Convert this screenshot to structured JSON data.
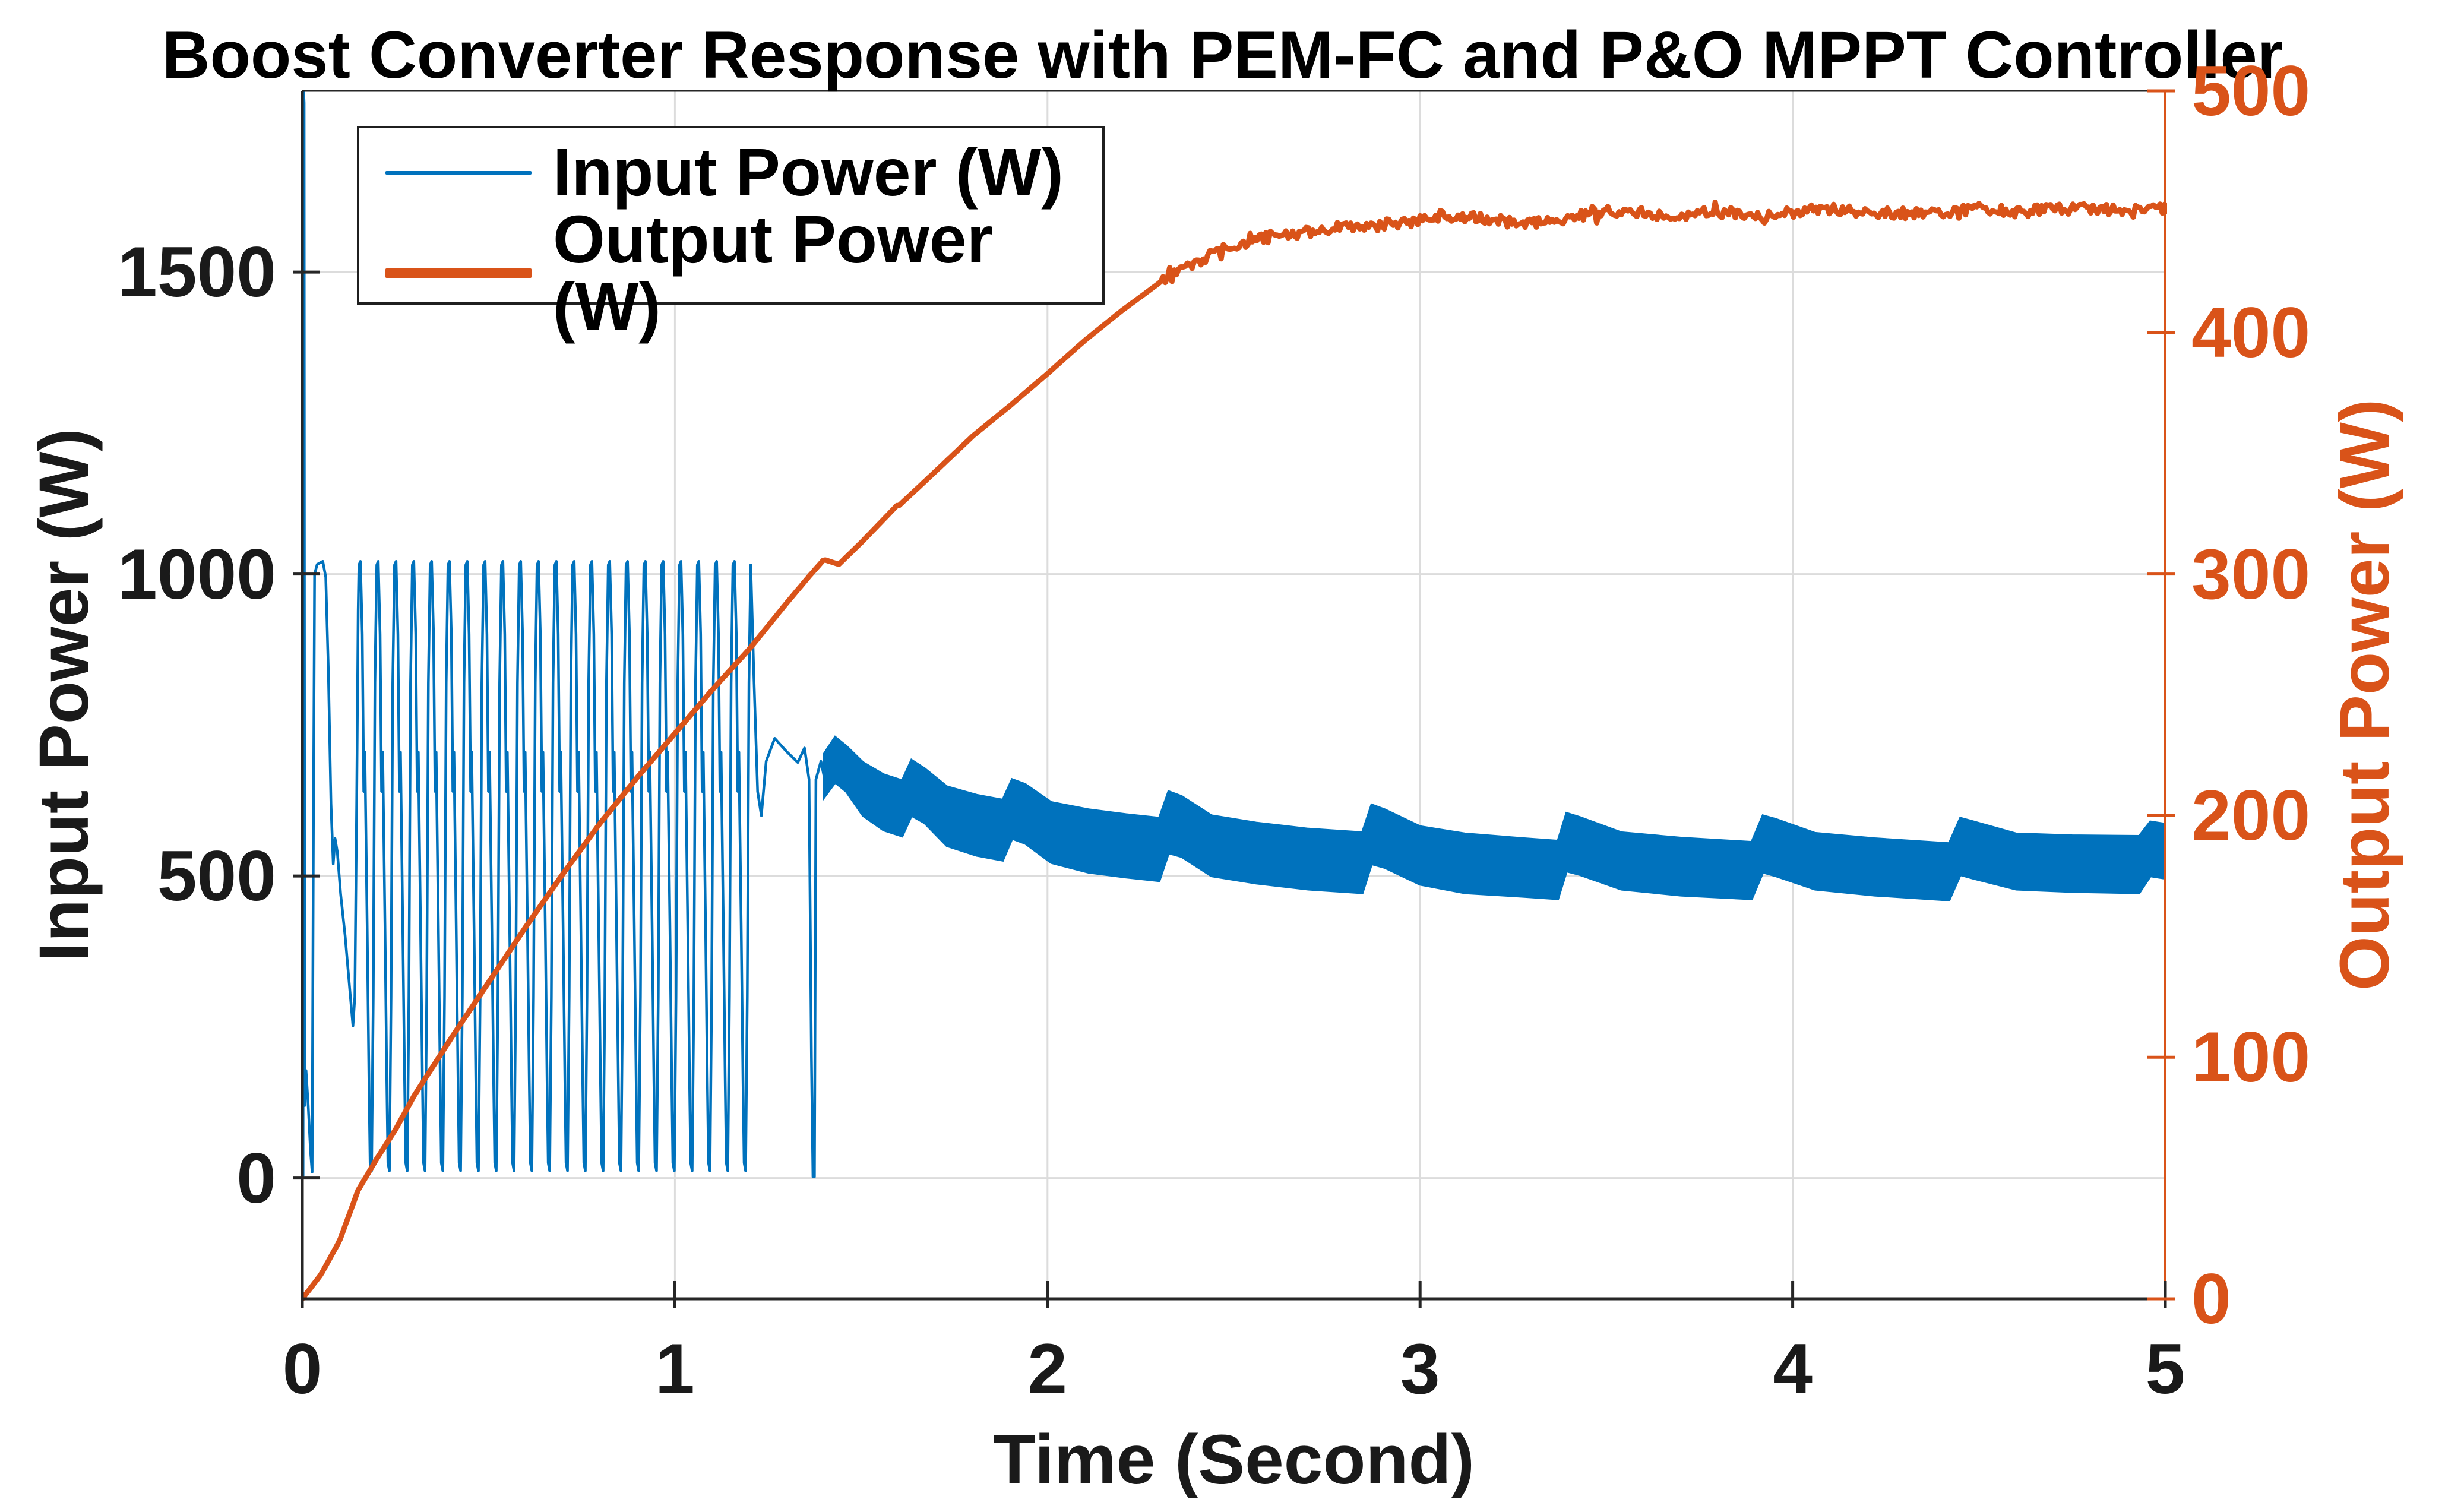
{
  "title": "Boost Converter Response with PEM-FC and P&O MPPT Controller",
  "axes": {
    "x": {
      "label": "Time (Second)",
      "min": 0,
      "max": 5,
      "ticks": [
        0,
        1,
        2,
        3,
        4,
        5
      ],
      "color": "#1a1a1a"
    },
    "y_left": {
      "label": "Input Power (W)",
      "min": -200,
      "max": 1800,
      "ticks": [
        0,
        500,
        1000,
        1500
      ],
      "color": "#1a1a1a"
    },
    "y_right": {
      "label": "Output Power (W)",
      "min": 0,
      "max": 500,
      "ticks": [
        0,
        100,
        200,
        300,
        400,
        500
      ],
      "color": "#D95319"
    }
  },
  "legend": {
    "items": [
      {
        "label": "Input Power (W)",
        "color": "#0072BD",
        "thickness": 6
      },
      {
        "label": "Output Power (W)",
        "color": "#D95319",
        "thickness": 16
      }
    ]
  },
  "styles": {
    "grid_color": "#dcdcdc",
    "axis_color": "#262626",
    "background": "#ffffff"
  },
  "chart_data": {
    "type": "line",
    "title": "Boost Converter Response with PEM-FC and P&O MPPT Controller",
    "xlabel": "Time (Second)",
    "x_range": [
      0,
      5
    ],
    "x_ticks": [
      0,
      1,
      2,
      3,
      4,
      5
    ],
    "y_left": {
      "label": "Input Power (W)",
      "range": [
        -200,
        1800
      ],
      "ticks": [
        0,
        500,
        1000,
        1500
      ]
    },
    "y_right": {
      "label": "Output Power (W)",
      "range": [
        0,
        500
      ],
      "ticks": [
        0,
        100,
        200,
        300,
        400,
        500
      ]
    },
    "grid": true,
    "legend_position": "northwest-inside",
    "series": [
      {
        "name": "Input Power (W)",
        "axis": "left",
        "color": "#0072BD",
        "stroke_width": 4.5,
        "description": "High-frequency P&O MPPT oscillation: ~1800 W startup transient, pulse train 0-1020 W until t=1.2 s, collapse to 0 at t=1.38 s, then dense band ~460-730 W with periodic perturbation steps",
        "initial_points": [
          [
            0,
            2
          ],
          [
            0.002,
            4
          ],
          [
            0.0035,
            1800
          ],
          [
            0.005,
            1780
          ],
          [
            0.0065,
            120
          ],
          [
            0.01,
            178
          ],
          [
            0.016,
            120
          ],
          [
            0.022,
            45
          ],
          [
            0.0265,
            10
          ],
          [
            0.03,
            600
          ],
          [
            0.033,
            1000
          ],
          [
            0.04,
            1016
          ],
          [
            0.055,
            1021
          ],
          [
            0.063,
            995
          ],
          [
            0.07,
            840
          ],
          [
            0.077,
            620
          ],
          [
            0.083,
            520
          ],
          [
            0.088,
            562
          ],
          [
            0.094,
            540
          ],
          [
            0.103,
            470
          ],
          [
            0.115,
            400
          ],
          [
            0.127,
            315
          ],
          [
            0.136,
            252
          ],
          [
            0.141,
            300
          ],
          [
            0.146,
            620
          ],
          [
            0.15,
            940
          ],
          [
            0.152,
            1015
          ]
        ],
        "spike_train": {
          "t_start": 0.152,
          "period": 0.0478,
          "count": 22,
          "peak": 1021,
          "trough": 12,
          "cycle": [
            [
              0,
              1015
            ],
            [
              0.004,
              1021
            ],
            [
              0.009,
              900
            ],
            [
              0.013,
              640
            ],
            [
              0.016,
              705
            ],
            [
              0.022,
              420
            ],
            [
              0.027,
              160
            ],
            [
              0.03,
              25
            ],
            [
              0.034,
              12
            ],
            [
              0.0385,
              300
            ],
            [
              0.043,
              820
            ],
            [
              0.0478,
              1015
            ]
          ]
        },
        "transition_points": [
          [
            1.2036,
            1015
          ],
          [
            1.212,
            830
          ],
          [
            1.222,
            640
          ],
          [
            1.232,
            600
          ],
          [
            1.245,
            690
          ],
          [
            1.268,
            728
          ],
          [
            1.3,
            706
          ],
          [
            1.33,
            688
          ],
          [
            1.348,
            712
          ],
          [
            1.36,
            660
          ],
          [
            1.3665,
            200
          ],
          [
            1.3705,
            2
          ],
          [
            1.3745,
            2
          ],
          [
            1.3785,
            660
          ],
          [
            1.392,
            690
          ],
          [
            1.4,
            666
          ]
        ],
        "band_envelope": [
          [
            1.4,
            630,
            702
          ],
          [
            1.43,
            655,
            730
          ],
          [
            1.46,
            640,
            715
          ],
          [
            1.505,
            600,
            688
          ],
          [
            1.56,
            576,
            668
          ],
          [
            1.61,
            566,
            658
          ],
          [
            1.635,
            600,
            692
          ],
          [
            1.67,
            588,
            678
          ],
          [
            1.73,
            550,
            648
          ],
          [
            1.81,
            534,
            634
          ],
          [
            1.88,
            526,
            626
          ],
          [
            1.905,
            562,
            660
          ],
          [
            1.94,
            554,
            652
          ],
          [
            2.01,
            522,
            622
          ],
          [
            2.11,
            506,
            610
          ],
          [
            2.21,
            498,
            602
          ],
          [
            2.3,
            492,
            596
          ],
          [
            2.325,
            538,
            640
          ],
          [
            2.36,
            532,
            632
          ],
          [
            2.44,
            500,
            600
          ],
          [
            2.56,
            488,
            588
          ],
          [
            2.7,
            478,
            578
          ],
          [
            2.845,
            472,
            572
          ],
          [
            2.87,
            520,
            618
          ],
          [
            2.905,
            514,
            610
          ],
          [
            3.0,
            486,
            582
          ],
          [
            3.12,
            472,
            570
          ],
          [
            3.28,
            466,
            562
          ],
          [
            3.37,
            462,
            558
          ],
          [
            3.393,
            508,
            604
          ],
          [
            3.43,
            502,
            597
          ],
          [
            3.54,
            478,
            572
          ],
          [
            3.7,
            468,
            563
          ],
          [
            3.89,
            462,
            556
          ],
          [
            3.92,
            506,
            600
          ],
          [
            3.955,
            500,
            594
          ],
          [
            4.06,
            478,
            571
          ],
          [
            4.22,
            468,
            562
          ],
          [
            4.42,
            460,
            554
          ],
          [
            4.45,
            502,
            596
          ],
          [
            4.485,
            496,
            590
          ],
          [
            4.6,
            478,
            570
          ],
          [
            4.75,
            474,
            567
          ],
          [
            4.93,
            472,
            566
          ],
          [
            4.96,
            500,
            590
          ],
          [
            5.0,
            496,
            586
          ]
        ]
      },
      {
        "name": "Output Power (W)",
        "axis": "right",
        "color": "#D95319",
        "stroke_width": 9,
        "description": "Boost converter output power ramp, saturating near 450 W",
        "keypoints": [
          [
            0,
            0
          ],
          [
            0.05,
            10
          ],
          [
            0.1,
            24
          ],
          [
            0.15,
            45
          ],
          [
            0.2,
            58
          ],
          [
            0.25,
            70
          ],
          [
            0.3,
            84
          ],
          [
            0.4,
            108
          ],
          [
            0.5,
            131
          ],
          [
            0.6,
            154
          ],
          [
            0.7,
            176
          ],
          [
            0.8,
            197
          ],
          [
            0.9,
            216
          ],
          [
            1.0,
            234
          ],
          [
            1.1,
            252
          ],
          [
            1.2,
            269
          ],
          [
            1.3,
            288
          ],
          [
            1.36,
            299
          ],
          [
            1.4,
            306
          ],
          [
            1.44,
            304
          ],
          [
            1.5,
            313
          ],
          [
            1.6,
            329
          ],
          [
            1.7,
            343
          ],
          [
            1.8,
            357
          ],
          [
            1.9,
            369
          ],
          [
            2.0,
            382
          ],
          [
            2.1,
            396
          ],
          [
            2.2,
            409
          ],
          [
            2.3,
            421
          ],
          [
            2.4,
            430
          ],
          [
            2.5,
            437
          ],
          [
            2.6,
            440
          ],
          [
            2.7,
            441
          ],
          [
            2.8,
            443
          ],
          [
            2.9,
            444
          ],
          [
            2.98,
            445
          ],
          [
            3.02,
            448
          ],
          [
            3.1,
            448
          ],
          [
            3.2,
            447
          ],
          [
            3.3,
            446
          ],
          [
            3.4,
            448
          ],
          [
            3.48,
            451
          ],
          [
            3.55,
            450
          ],
          [
            3.65,
            448
          ],
          [
            3.75,
            448
          ],
          [
            3.85,
            449
          ],
          [
            3.92,
            447
          ],
          [
            4.0,
            450
          ],
          [
            4.1,
            452
          ],
          [
            4.2,
            451
          ],
          [
            4.3,
            450
          ],
          [
            4.4,
            450
          ],
          [
            4.5,
            451
          ],
          [
            4.6,
            449
          ],
          [
            4.7,
            450
          ],
          [
            4.8,
            451
          ],
          [
            4.9,
            451
          ],
          [
            5.0,
            452
          ]
        ],
        "noise": {
          "start_t": 2.3,
          "amplitude": 2.3,
          "wiggle_amp": 0.9,
          "wiggle_freq": 7.1
        }
      }
    ]
  }
}
